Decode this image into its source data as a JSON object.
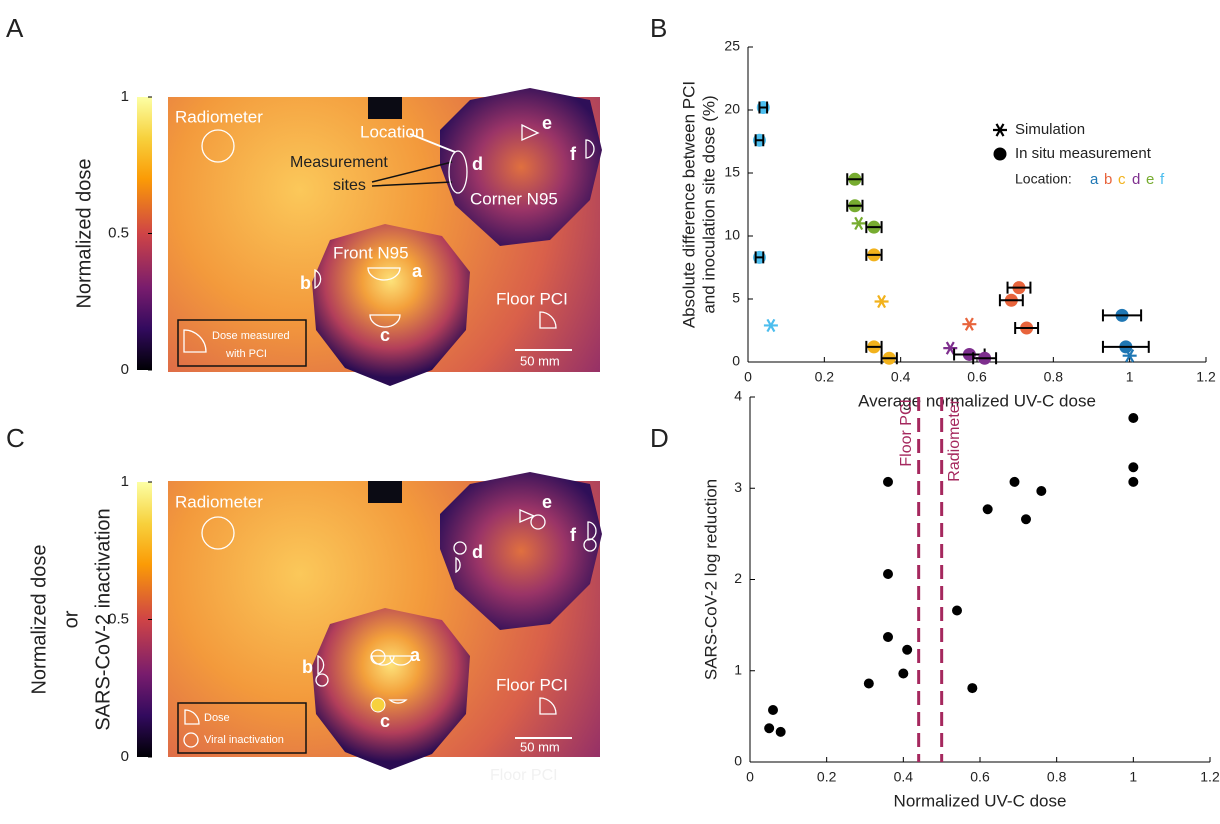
{
  "chart_data": [
    {
      "type": "heatmap",
      "panel": "A",
      "colorbar_label": [
        "Normalized dose"
      ],
      "clim": [
        0,
        1
      ],
      "cticks": [
        0,
        0.5,
        1
      ],
      "labels": {
        "radiometer": "Radiometer",
        "location": "Location",
        "measurement_sites": [
          "Measurement",
          "sites"
        ],
        "corner": "Corner N95",
        "front": "Front N95",
        "floor": "Floor PCI",
        "scale": "50 mm",
        "sites": [
          "a",
          "b",
          "c",
          "d",
          "e",
          "f"
        ],
        "legend": [
          "Dose measured",
          "with PCI"
        ]
      }
    },
    {
      "type": "scatter",
      "panel": "B",
      "xlabel": "Average normalized UV-C dose",
      "ylabel": [
        "Absolute difference between PCI",
        "and inoculation site dose (%)"
      ],
      "xlim": [
        0,
        1.2
      ],
      "xticks": [
        0,
        0.2,
        0.4,
        0.6,
        0.8,
        1,
        1.2
      ],
      "ylim": [
        0,
        25
      ],
      "yticks": [
        0,
        5,
        10,
        15,
        20,
        25
      ],
      "legend": [
        "Simulation",
        "In situ measurement"
      ],
      "location_label": "Location:",
      "series": [
        {
          "name": "a",
          "color": "#1f77b4",
          "x": [
            0.98,
            0.99
          ],
          "y": [
            3.7,
            1.2
          ],
          "xerr": [
            0.05,
            0.06
          ],
          "sim_x": [
            1.0
          ],
          "sim_y": [
            0.5
          ]
        },
        {
          "name": "b",
          "color": "#e8643c",
          "x": [
            0.71,
            0.69,
            0.73
          ],
          "y": [
            5.9,
            4.9,
            2.7
          ],
          "xerr": [
            0.03,
            0.03,
            0.03
          ],
          "sim_x": [
            0.58
          ],
          "sim_y": [
            3.0
          ]
        },
        {
          "name": "c",
          "color": "#f2b21c",
          "x": [
            0.33,
            0.33,
            0.37
          ],
          "y": [
            8.5,
            1.2,
            0.3
          ],
          "xerr": [
            0.02,
            0.02,
            0.02
          ],
          "sim_x": [
            0.35
          ],
          "sim_y": [
            4.8
          ]
        },
        {
          "name": "d",
          "color": "#7e2f8e",
          "x": [
            0.58,
            0.62
          ],
          "y": [
            0.6,
            0.3
          ],
          "xerr": [
            0.04,
            0.03
          ],
          "sim_x": [
            0.53
          ],
          "sim_y": [
            1.1
          ]
        },
        {
          "name": "e",
          "color": "#77ac30",
          "x": [
            0.28,
            0.28,
            0.33
          ],
          "y": [
            14.5,
            12.4,
            10.7
          ],
          "xerr": [
            0.02,
            0.02,
            0.02
          ],
          "sim_x": [
            0.29
          ],
          "sim_y": [
            11.0
          ]
        },
        {
          "name": "f",
          "color": "#4dbeee",
          "x": [
            0.04,
            0.03,
            0.03
          ],
          "y": [
            20.2,
            17.6,
            8.3
          ],
          "xerr": [
            0.01,
            0.01,
            0.01
          ],
          "sim_x": [
            0.06
          ],
          "sim_y": [
            2.9
          ]
        }
      ]
    },
    {
      "type": "heatmap",
      "panel": "C",
      "colorbar_label": [
        "Normalized dose",
        "or",
        "SARS-CoV-2 inactivation"
      ],
      "clim": [
        0,
        1
      ],
      "cticks": [
        0,
        0.5,
        1
      ],
      "labels": {
        "radiometer": "Radiometer",
        "floor": "Floor PCI",
        "scale": "50 mm",
        "sites": [
          "a",
          "b",
          "c",
          "d",
          "e",
          "f"
        ],
        "legend": [
          "Dose",
          "Viral inactivation"
        ],
        "ghost": "Floor PCI"
      }
    },
    {
      "type": "scatter",
      "panel": "D",
      "xlabel": "Normalized UV-C dose",
      "ylabel": [
        "SARS-CoV-2 log reduction"
      ],
      "xlim": [
        0,
        1.2
      ],
      "xticks": [
        0,
        0.2,
        0.4,
        0.6,
        0.8,
        1,
        1.2
      ],
      "ylim": [
        0,
        4
      ],
      "yticks": [
        0,
        1,
        2,
        3,
        4
      ],
      "color": "#000000",
      "x": [
        0.05,
        0.06,
        0.08,
        0.31,
        0.36,
        0.36,
        0.36,
        0.4,
        0.41,
        0.54,
        0.58,
        0.62,
        0.69,
        0.72,
        0.76,
        1,
        1,
        1
      ],
      "y": [
        0.37,
        0.57,
        0.33,
        0.86,
        3.07,
        2.06,
        1.37,
        0.97,
        1.23,
        1.66,
        0.81,
        2.77,
        3.07,
        2.66,
        2.97,
        3.77,
        3.23,
        3.07
      ],
      "vlines": [
        {
          "x": 0.44,
          "label": "Floor PCI"
        },
        {
          "x": 0.5,
          "label": "Radiometer"
        }
      ],
      "vline_color": "#a5285e"
    }
  ]
}
